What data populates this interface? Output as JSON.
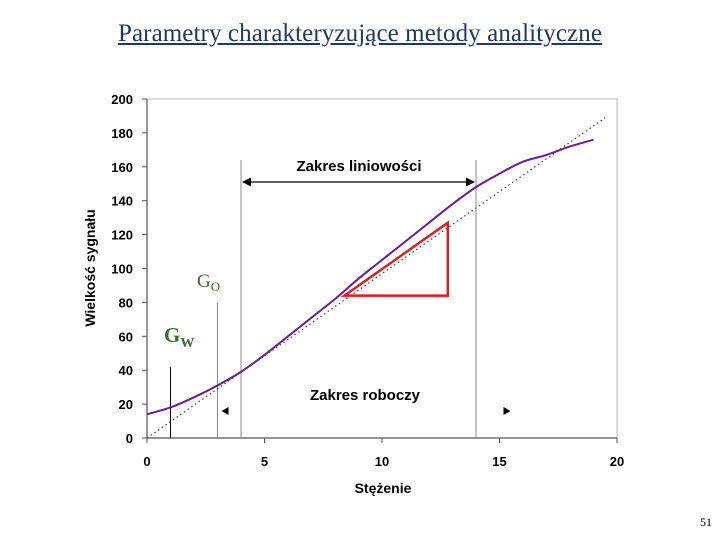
{
  "slide": {
    "title": "Parametry charakteryzujące metody analityczne",
    "page_number": "51"
  },
  "chart_data": {
    "type": "line",
    "xlabel": "Stężenie",
    "ylabel": "Wielkość sygnału",
    "xlim": [
      0,
      20
    ],
    "ylim": [
      0,
      200
    ],
    "x_ticks": [
      0,
      5,
      10,
      15,
      20
    ],
    "y_ticks": [
      0,
      20,
      40,
      60,
      80,
      100,
      120,
      140,
      160,
      180,
      200
    ],
    "grid": false,
    "series": [
      {
        "role": "calibration curve",
        "color": "#6a1b9a",
        "x": [
          0,
          1,
          2,
          3,
          4,
          5,
          6,
          7,
          8,
          9,
          10,
          11,
          12,
          13,
          14,
          15,
          16,
          17,
          18,
          19
        ],
        "y": [
          14,
          18,
          24,
          31,
          39,
          49,
          60,
          71,
          82,
          94,
          105,
          116,
          127,
          138,
          148,
          156,
          163,
          167,
          172,
          176
        ]
      },
      {
        "role": "linear extrapolation",
        "color": "#444444",
        "style": "dotted",
        "x": [
          0,
          19.5
        ],
        "y": [
          0,
          189
        ]
      }
    ],
    "annotations": {
      "linear_range_label": "Zakres liniowości",
      "linear_range_x": [
        4,
        14
      ],
      "working_range_label": "Zakres roboczy",
      "working_range_x": [
        3,
        15
      ],
      "lod_label_main": "G",
      "lod_label_sub": "W",
      "lod_x": 1,
      "loq_label_main": "G",
      "loq_label_sub": "O",
      "loq_x": 3,
      "slope_triangle": {
        "x": [
          8.4,
          12.8
        ],
        "y": [
          84,
          127
        ],
        "color": "#e01b1b"
      }
    }
  }
}
